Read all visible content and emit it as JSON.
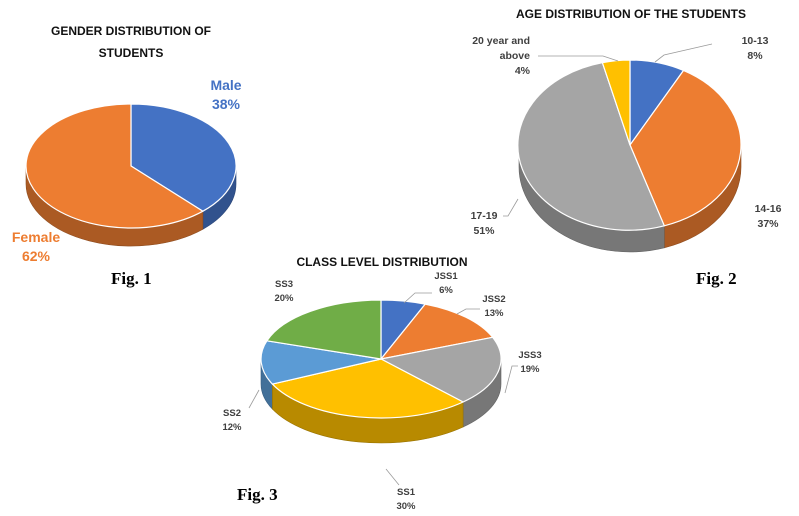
{
  "figures": {
    "fig1": "Fig. 1",
    "fig2": "Fig. 2",
    "fig3": "Fig. 3"
  },
  "chart_data": [
    {
      "type": "pie",
      "title_lines": [
        "GENDER DISTRIBUTION OF",
        "STUDENTS"
      ],
      "slices": [
        {
          "name": "Male",
          "value": 38,
          "label": "38%",
          "color": "#4472C4"
        },
        {
          "name": "Female",
          "value": 62,
          "label": "62%",
          "color": "#ED7D31"
        }
      ]
    },
    {
      "type": "pie",
      "title_lines": [
        "AGE DISTRIBUTION OF THE STUDENTS"
      ],
      "slices": [
        {
          "name": "10-13",
          "value": 8,
          "label": "8%",
          "color": "#4472C4"
        },
        {
          "name": "14-16",
          "value": 37,
          "label": "37%",
          "color": "#ED7D31"
        },
        {
          "name": "17-19",
          "value": 51,
          "label": "51%",
          "color": "#A5A5A5"
        },
        {
          "name": "20 year and above",
          "name_lines": [
            "20 year and",
            "above"
          ],
          "value": 4,
          "label": "4%",
          "color": "#FFC000"
        }
      ]
    },
    {
      "type": "pie",
      "title_lines": [
        "CLASS  LEVEL DISTRIBUTION"
      ],
      "slices": [
        {
          "name": "JSS1",
          "value": 6,
          "label": "6%",
          "color": "#4472C4"
        },
        {
          "name": "JSS2",
          "value": 13,
          "label": "13%",
          "color": "#ED7D31"
        },
        {
          "name": "JSS3",
          "value": 19,
          "label": "19%",
          "color": "#A5A5A5"
        },
        {
          "name": "SS1",
          "value": 30,
          "label": "30%",
          "color": "#FFC000"
        },
        {
          "name": "SS2",
          "value": 12,
          "label": "12%",
          "color": "#5B9BD5"
        },
        {
          "name": "SS3",
          "value": 20,
          "label": "20%",
          "color": "#70AD47"
        }
      ]
    }
  ]
}
